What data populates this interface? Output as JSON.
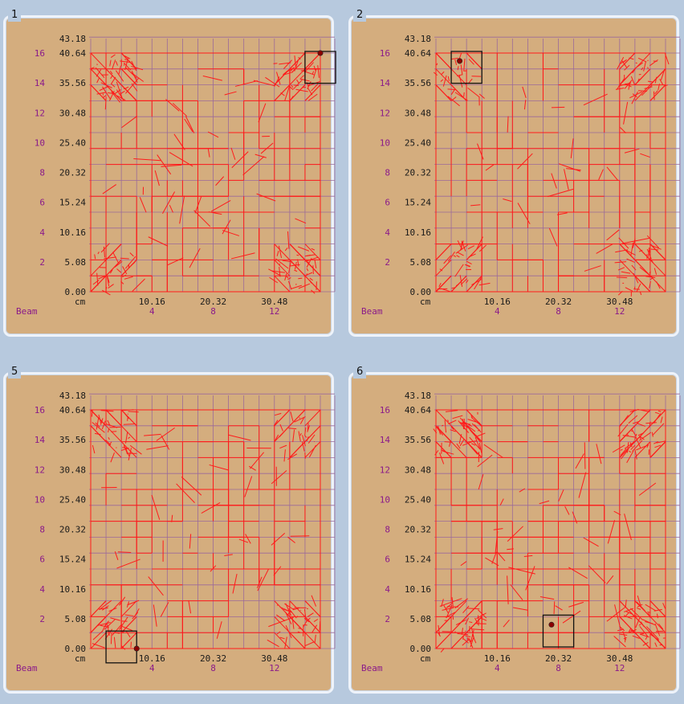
{
  "colors": {
    "background": "#b7c9de",
    "panel_fill": "#d4ad7e",
    "grid_line": "#9b6a9a",
    "path_line": "#ff1a1a",
    "beam_text": "#8a1a8a",
    "cm_text": "#1a1a1a"
  },
  "axis": {
    "cm_ticks_y": [
      "0.00",
      "5.08",
      "10.16",
      "15.24",
      "20.32",
      "25.40",
      "30.48",
      "35.56",
      "40.64",
      "43.18"
    ],
    "beam_ticks_y": [
      "2",
      "4",
      "6",
      "8",
      "10",
      "12",
      "14",
      "16"
    ],
    "cm_ticks_x": [
      "10.16",
      "20.32",
      "30.48"
    ],
    "beam_ticks_x": [
      "4",
      "8",
      "12"
    ],
    "cm_unit": "cm",
    "beam_label": "Beam"
  },
  "panels": [
    {
      "id": "1",
      "label": "1",
      "marker": {
        "beam_x": 15.0,
        "beam_y": 15.0
      },
      "density": [
        1.0,
        0.8,
        0.6,
        0.9
      ]
    },
    {
      "id": "2",
      "label": "2",
      "marker": {
        "beam_x": 2.0,
        "beam_y": 15.0
      },
      "density": [
        0.6,
        0.9,
        0.7,
        0.8
      ]
    },
    {
      "id": "5",
      "label": "5",
      "marker": {
        "beam_x": 2.0,
        "beam_y": 1.0
      },
      "density": [
        0.8,
        0.6,
        0.7,
        0.8
      ]
    },
    {
      "id": "6",
      "label": "6",
      "marker": {
        "beam_x": 8.0,
        "beam_y": 2.0
      },
      "density": [
        1.0,
        1.0,
        0.9,
        1.0
      ]
    }
  ]
}
